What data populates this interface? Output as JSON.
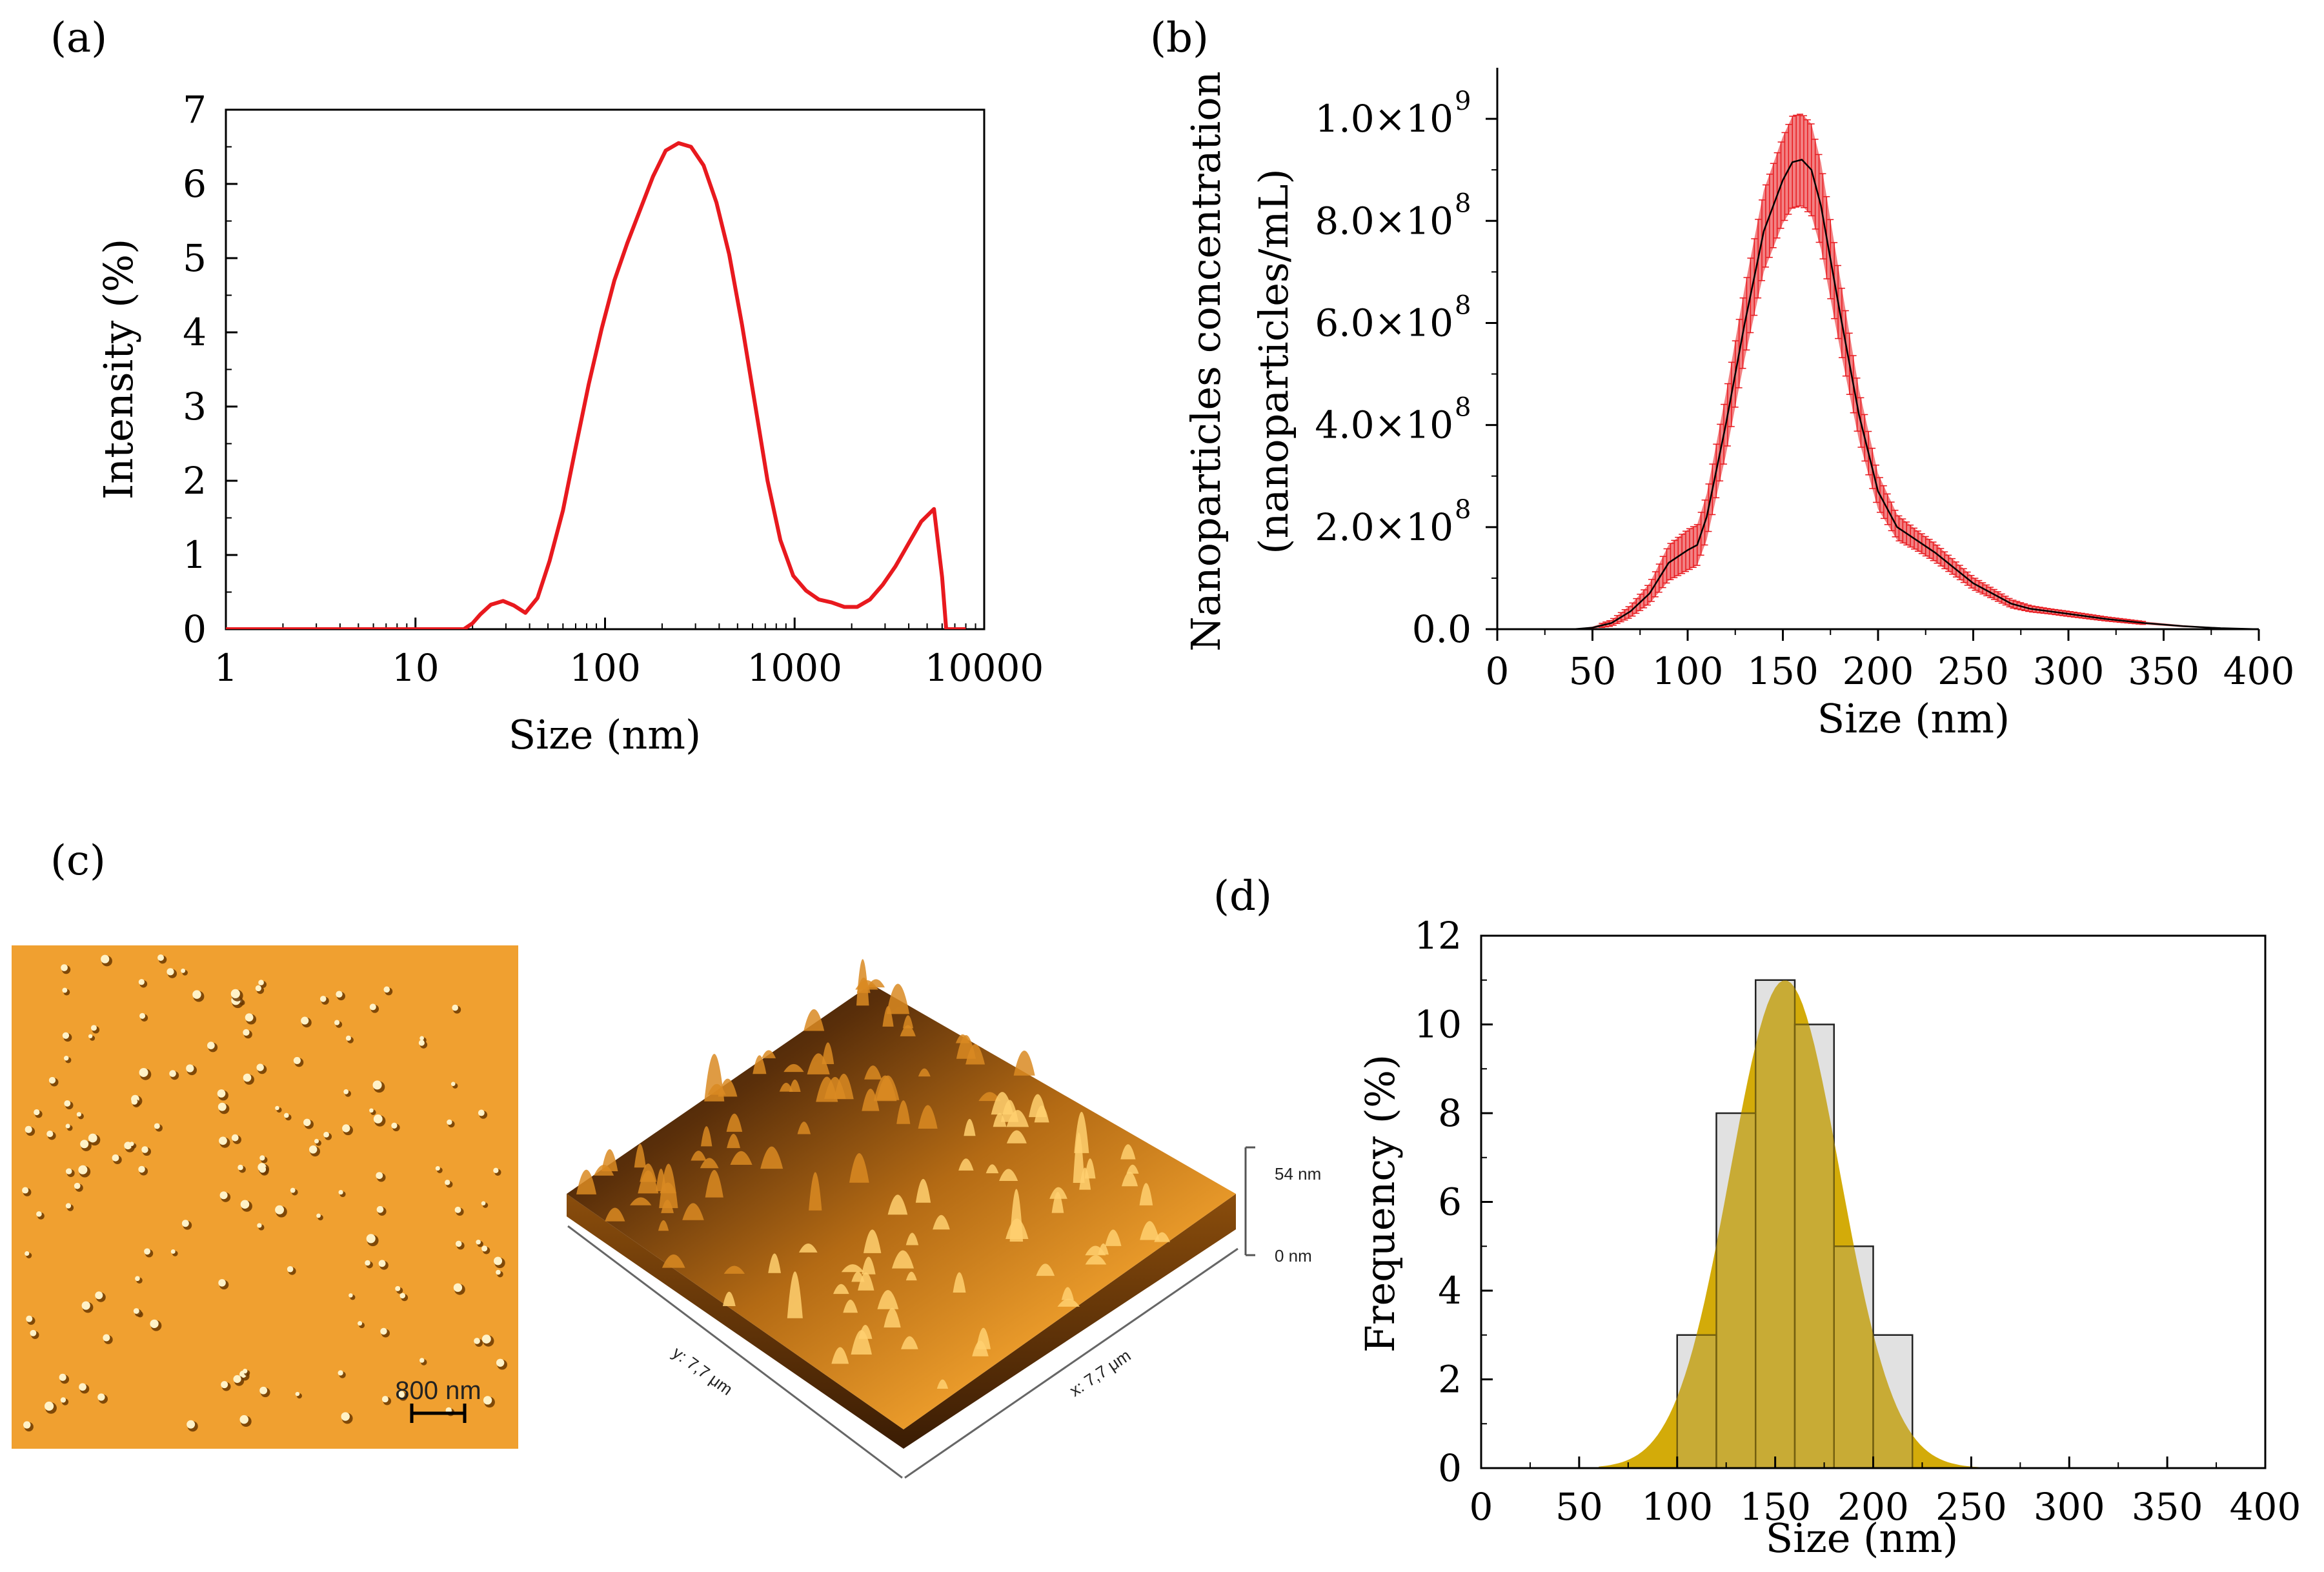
{
  "panel_labels": {
    "a": "(a)",
    "b": "(b)",
    "c": "(c)",
    "d": "(d)"
  },
  "chart_data": [
    {
      "panel": "a",
      "type": "line",
      "xscale": "log",
      "xlabel": "Size (nm)",
      "ylabel": "Intensity (%)",
      "xlim": [
        1,
        10000
      ],
      "ylim": [
        0,
        7
      ],
      "xticks": [
        "1",
        "10",
        "100",
        "1000",
        "10000"
      ],
      "yticks": [
        "0",
        "1",
        "2",
        "3",
        "4",
        "5",
        "6",
        "7"
      ],
      "line_color": "#e8191e",
      "series": [
        {
          "name": "Intensity",
          "x": [
            1,
            18,
            20,
            22,
            25,
            29,
            33,
            38,
            44,
            51,
            60,
            70,
            82,
            96,
            112,
            131,
            153,
            179,
            209,
            244,
            284,
            331,
            387,
            452,
            528,
            617,
            720,
            841,
            983,
            1148,
            1341,
            1567,
            1830,
            2138,
            2498,
            2918,
            3409,
            3982,
            4652,
            5435,
            6000,
            6300,
            8000
          ],
          "y": [
            0,
            0,
            0.08,
            0.2,
            0.33,
            0.38,
            0.32,
            0.22,
            0.42,
            0.92,
            1.6,
            2.45,
            3.3,
            4.05,
            4.7,
            5.2,
            5.65,
            6.1,
            6.45,
            6.55,
            6.5,
            6.25,
            5.75,
            5.05,
            4.1,
            3.05,
            2.0,
            1.2,
            0.72,
            0.52,
            0.4,
            0.36,
            0.3,
            0.3,
            0.4,
            0.6,
            0.85,
            1.15,
            1.45,
            1.62,
            0.7,
            0,
            0
          ]
        }
      ]
    },
    {
      "panel": "b",
      "type": "line",
      "xlabel": "Size (nm)",
      "ylabel": [
        "Nanoparticles concentration",
        "(nanoparticles/mL)"
      ],
      "xlim": [
        0,
        400
      ],
      "ylim": [
        0,
        1100000000.0
      ],
      "xticks": [
        "0",
        "50",
        "100",
        "150",
        "200",
        "250",
        "300",
        "350",
        "400"
      ],
      "ytick_mantissas": [
        "0.0",
        "2.0×10",
        "4.0×10",
        "6.0×10",
        "8.0×10",
        "1.0×10"
      ],
      "ytick_exponents": [
        "",
        "8",
        "8",
        "8",
        "8",
        "9"
      ],
      "line_color": "#000000",
      "error_color": "#e8191e",
      "series": [
        {
          "name": "Concentration",
          "x": [
            0,
            40,
            50,
            60,
            70,
            80,
            90,
            100,
            105,
            110,
            120,
            130,
            140,
            150,
            155,
            160,
            165,
            170,
            180,
            190,
            200,
            210,
            220,
            230,
            240,
            250,
            260,
            270,
            280,
            290,
            300,
            320,
            340,
            360,
            380,
            400
          ],
          "y": [
            0,
            0,
            3000000.0,
            12000000.0,
            35000000.0,
            70000000.0,
            130000000.0,
            155000000.0,
            165000000.0,
            220000000.0,
            400000000.0,
            600000000.0,
            780000000.0,
            880000000.0,
            915000000.0,
            920000000.0,
            900000000.0,
            830000000.0,
            620000000.0,
            420000000.0,
            270000000.0,
            200000000.0,
            175000000.0,
            150000000.0,
            120000000.0,
            90000000.0,
            70000000.0,
            50000000.0,
            40000000.0,
            35000000.0,
            30000000.0,
            20000000.0,
            12000000.0,
            6000000.0,
            2000000.0,
            0
          ],
          "error": [
            0,
            0,
            2000000.0,
            6000000.0,
            12000000.0,
            20000000.0,
            35000000.0,
            40000000.0,
            40000000.0,
            45000000.0,
            60000000.0,
            70000000.0,
            80000000.0,
            85000000.0,
            90000000.0,
            90000000.0,
            90000000.0,
            85000000.0,
            70000000.0,
            50000000.0,
            35000000.0,
            25000000.0,
            20000000.0,
            18000000.0,
            15000000.0,
            12000000.0,
            10000000.0,
            8000000.0,
            6000000.0,
            5000000.0,
            5000000.0,
            4000000.0,
            3000000.0,
            2000000.0,
            1000000.0,
            0
          ]
        }
      ]
    },
    {
      "panel": "d",
      "type": "bar",
      "xlabel": "Size (nm)",
      "ylabel": "Frequency (%)",
      "xlim": [
        0,
        400
      ],
      "ylim": [
        0,
        12
      ],
      "xticks": [
        "0",
        "50",
        "100",
        "150",
        "200",
        "250",
        "300",
        "350",
        "400"
      ],
      "yticks": [
        "0",
        "2",
        "4",
        "6",
        "8",
        "10",
        "12"
      ],
      "bar_color": "#c8c8c8",
      "bins": [
        {
          "from": 100,
          "to": 120,
          "value": 3
        },
        {
          "from": 120,
          "to": 140,
          "value": 8
        },
        {
          "from": 140,
          "to": 160,
          "value": 11
        },
        {
          "from": 160,
          "to": 180,
          "value": 10
        },
        {
          "from": 180,
          "to": 200,
          "value": 5
        },
        {
          "from": 200,
          "to": 220,
          "value": 3
        }
      ],
      "fit": {
        "type": "gaussian",
        "mean": 155,
        "sd": 28,
        "peak": 11,
        "color": "#f2c200"
      }
    }
  ],
  "afm": {
    "scale_bar": "800 nm",
    "z_top": "54 nm",
    "z_bottom": "0 nm",
    "y_axis": "y: 7,7 μm",
    "x_axis": "x: 7,7 μm",
    "colors": {
      "base": "#f0a030",
      "dark": "#2a1505",
      "mid": "#b36a14",
      "light": "#ffd070"
    }
  }
}
